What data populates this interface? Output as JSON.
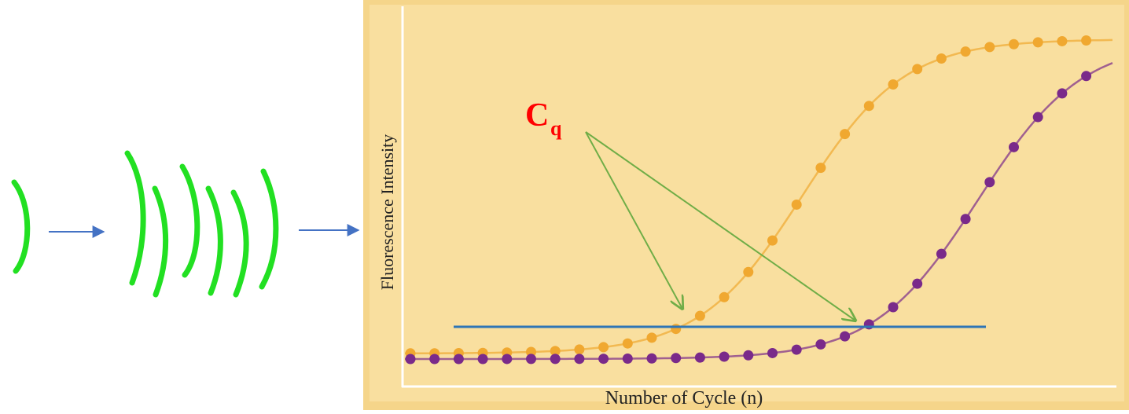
{
  "chart": {
    "y_label": "Fluorescence Intensity",
    "x_label": "Number of Cycle (n)",
    "marker": {
      "main": "C",
      "subscript": "q"
    }
  }
}
